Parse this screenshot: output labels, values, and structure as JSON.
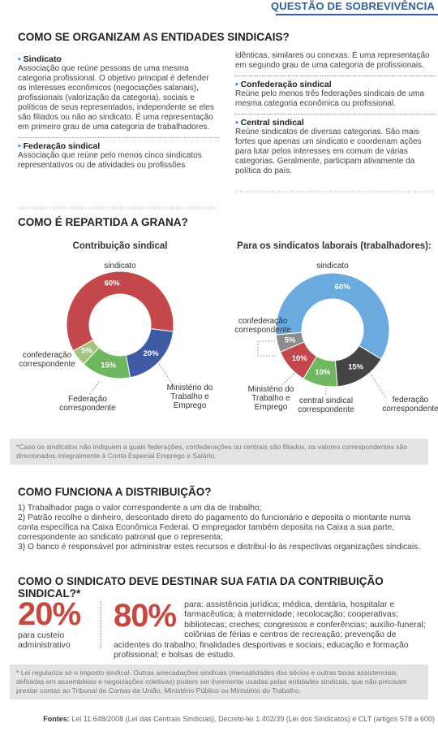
{
  "header": {
    "title": "QUESTÃO DE SOBREVIVÊNCIA"
  },
  "organization": {
    "title": "COMO SE ORGANIZAM AS ENTIDADES SINDICAIS?",
    "items": [
      {
        "name": "Sindicato",
        "text": "Associação que reúne pessoas de uma mesma categoria profissional. O objetivo principal é defender os interesses econômicos (negociações salariais), profissionais (valorização da categoria), sociais e políticos de seus representados, independente se eles são filiados ou não ao sindicato. É uma representação em primeiro grau de uma categoria de trabalhadores."
      },
      {
        "name": "Federação sindical",
        "text": "Associação que reúne pelo menos cinco sindicatos representativos ou de atividades ou profissões idênticas, similares ou conexas. É uma representação em segundo grau de uma categoria de profissionais."
      },
      {
        "name": "Confederação sindical",
        "text": "Reúne pelo menos três federações sindicais de uma mesma categoria econômica ou profissional."
      },
      {
        "name": "Central sindical",
        "text": "Reúne sindicatos de diversas categorias. São mais fortes que apenas um sindicato e coordenam ações para lutar pelos interesses em comum de várias categorias. Geralmente, participam ativamente da política do país."
      }
    ]
  },
  "split": {
    "title": "COMO É REPARTIDA A GRANA?",
    "footnote": "*Caso os sindicatos não indiquem a quais federações, confederações ou centrais são filiados, os valores correspondentes são direcionados integralmente à Conta Especial Emprego e Salário."
  },
  "chart_data": [
    {
      "type": "pie",
      "title": "Contribuição sindical",
      "categories": [
        "sindicato",
        "Ministério do Trabalho e Emprego",
        "Federação correspondente",
        "confederação correspondente"
      ],
      "values": [
        60,
        20,
        15,
        5
      ],
      "value_labels": [
        "60%",
        "20%",
        "15%",
        "5%"
      ],
      "colors": [
        "#c4484b",
        "#3f5ba6",
        "#6db85f",
        "#a3c67f"
      ]
    },
    {
      "type": "pie",
      "title": "Para os sindicatos laborais (trabalhadores):",
      "categories": [
        "sindicato",
        "federação correspondente",
        "central sindical correspondente",
        "Ministério do Trabalho e Emprego",
        "confederação correspondente"
      ],
      "values": [
        60,
        15,
        10,
        10,
        5
      ],
      "value_labels": [
        "60%",
        "15%",
        "10%",
        "10%",
        "5%"
      ],
      "colors": [
        "#6aaade",
        "#454545",
        "#6db85f",
        "#c4484b",
        "#8c8c8c"
      ]
    }
  ],
  "distribution": {
    "title": "COMO FUNCIONA A DISTRIBUIÇÃO?",
    "steps": [
      "1) Trabalhador paga o valor correspondente a um dia de trabalho;",
      "2) Patrão recolhe o dinheiro, descontado direto do pagamento do funcionário e deposita o montante numa conta específica na Caixa Econômica Federal. O empregador também deposita na Caixa a sua parte, correspondente ao sindicato patronal que o representa;",
      "3) O banco é responsável por administrar estes recursos e distribuí-lo às respectivas organizações sindicais."
    ]
  },
  "allocation": {
    "title": "COMO O SINDICATO DEVE DESTINAR SUA FATIA DA CONTRIBUIÇÃO SINDICAL?*",
    "items": [
      {
        "value": "20%",
        "text": "para custeio administrativo"
      },
      {
        "value": "80%",
        "text": "para: assistência jurídica; médica, dentária, hospitalar e farmacêutica; à maternidade; recolocação; cooperativas; bibliotecas; creches; congressos e conferências; auxílio-funeral; colônias de férias e centros de recreação; prevenção de acidentes do trabalho; finalidades desportivas e sociais; educação e formação profissional; e bolsas de estudo."
      }
    ],
    "footnote": "* Lei regulariza só o imposto sindical. Outras arrecadações sindicais (mensalidades dos sócios e outras taxas assistenciais, definidas em assembleias e negociações coletivas) podem ser livremente usadas pelas entidades sindicais, que não precisam prestar contas ao Tribunal de Contas da União, Ministério Público ou Ministério do Trabalho."
  },
  "sources": {
    "label": "Fontes:",
    "text": "Lei 11.648/2008 (Lei das Centrais Sindicias), Decreto-lei 1.402/39 (Lei dos Sindicatos) e CLT (artigos 578 a 600)"
  }
}
